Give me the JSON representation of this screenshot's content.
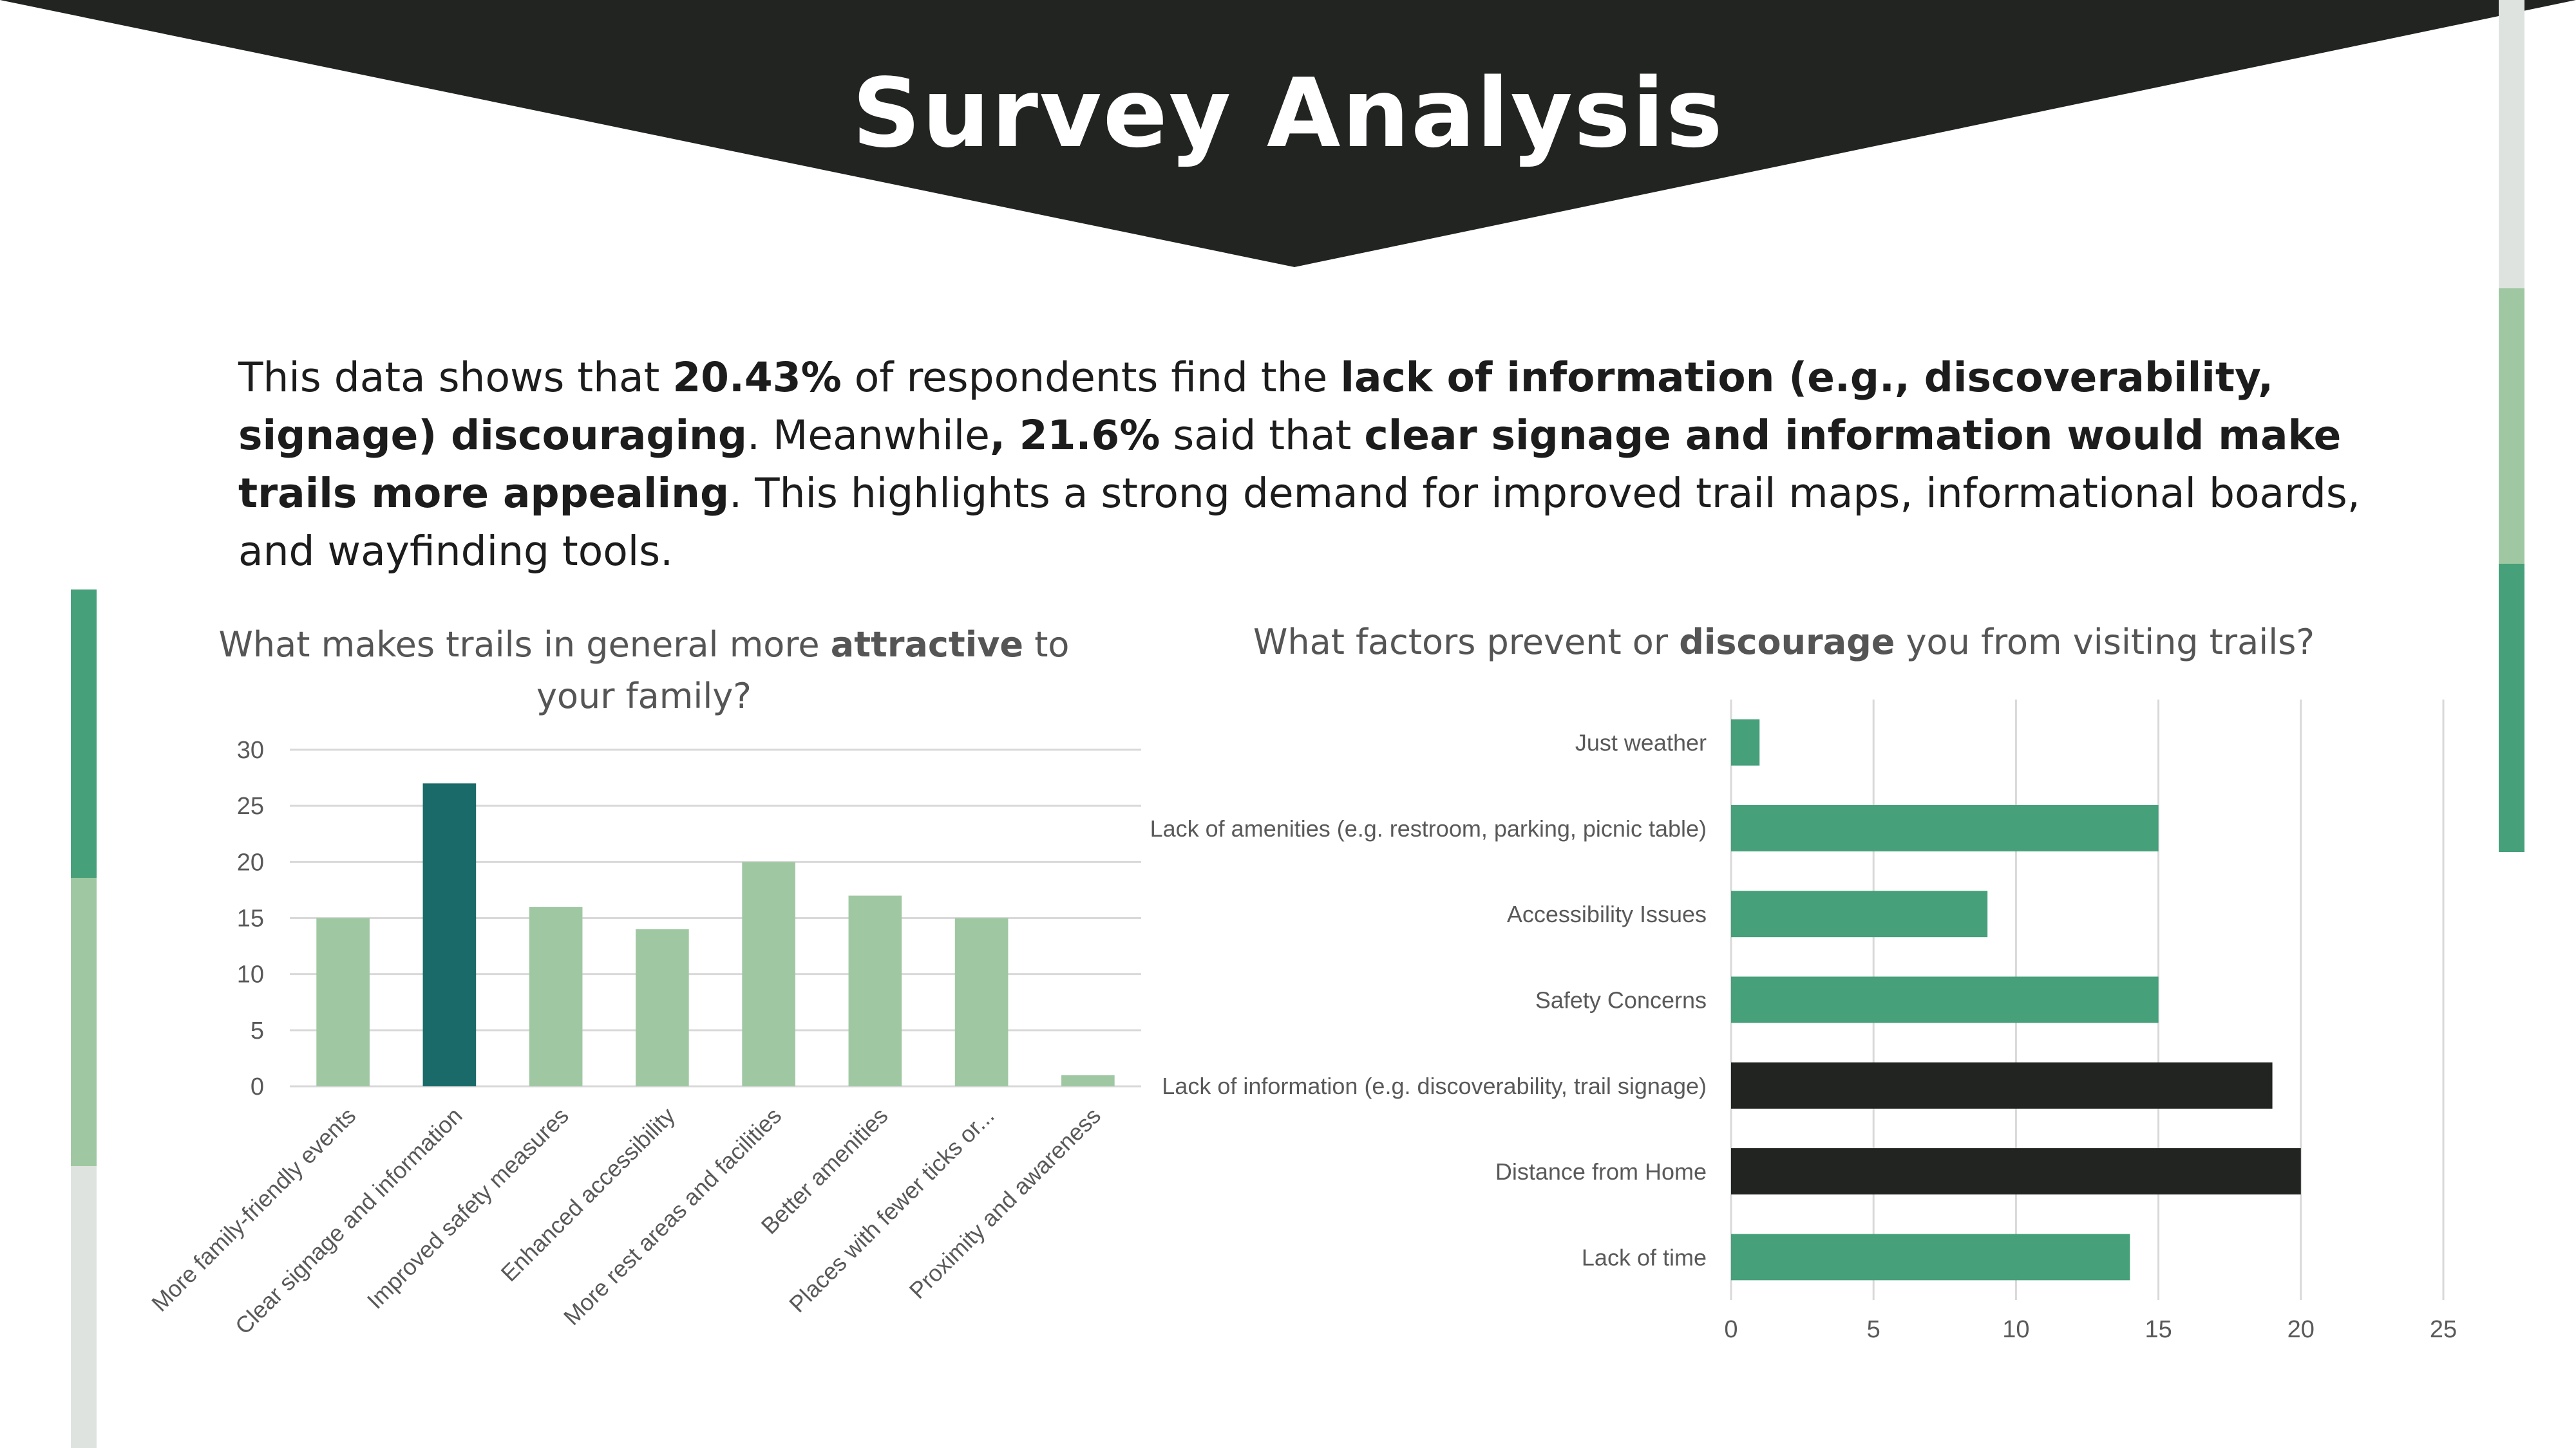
{
  "slide": {
    "title": "Survey Analysis",
    "summary": {
      "p1": "This data shows that ",
      "b1": "20.43%",
      "p2": " of respondents find the ",
      "b2": "lack of information (e.g., discoverability, signage) discouraging",
      "p3": ". Meanwhile",
      "b3": ", 21.6%",
      "p4": " said that ",
      "b4": "clear signage and information would make trails more appealing",
      "p5": ". This highlights a strong demand for improved trail maps, informational boards, and wayfinding tools."
    }
  },
  "colors": {
    "banner": "#212421",
    "accent_dark": "#46a07a",
    "accent_light": "#9fc8a2",
    "accent_grey": "#dfe3e0",
    "bar_light": "#9fc8a2",
    "bar_highlight": "#1b6a6a",
    "hbar_green": "#46a07a",
    "hbar_dark": "#212421",
    "grid": "#d9d9d9"
  },
  "chart_data": [
    {
      "type": "bar",
      "title_parts": [
        "What makes trails in general more ",
        "attractive",
        " to your family?"
      ],
      "categories": [
        "More family-friendly events",
        "Clear signage and information",
        "Improved safety measures",
        "Enhanced accessibility",
        "More rest areas and facilities",
        "Better amenities",
        "Places with fewer ticks or...",
        "Proximity and awareness"
      ],
      "values": [
        15,
        27,
        16,
        14,
        20,
        17,
        15,
        1
      ],
      "highlight_index": 1,
      "ylim": [
        0,
        30
      ],
      "yticks": [
        0,
        5,
        10,
        15,
        20,
        25,
        30
      ],
      "xlabel": "",
      "ylabel": "",
      "grid": true,
      "legend": "none"
    },
    {
      "type": "bar",
      "orientation": "horizontal",
      "title_parts": [
        "What factors prevent or ",
        "discourage",
        " you from visiting trails?"
      ],
      "categories": [
        "Just weather",
        "Lack of amenities (e.g. restroom, parking, picnic table)",
        "Accessibility Issues",
        "Safety Concerns",
        "Lack of information (e.g. discoverability, trail signage)",
        "Distance from Home",
        "Lack of time"
      ],
      "values": [
        1,
        15,
        9,
        15,
        19,
        20,
        14
      ],
      "highlight_indices": [
        4,
        5
      ],
      "xlim": [
        0,
        25
      ],
      "xticks": [
        0,
        5,
        10,
        15,
        20,
        25
      ],
      "xlabel": "",
      "ylabel": "",
      "grid": true,
      "legend": "none"
    }
  ]
}
